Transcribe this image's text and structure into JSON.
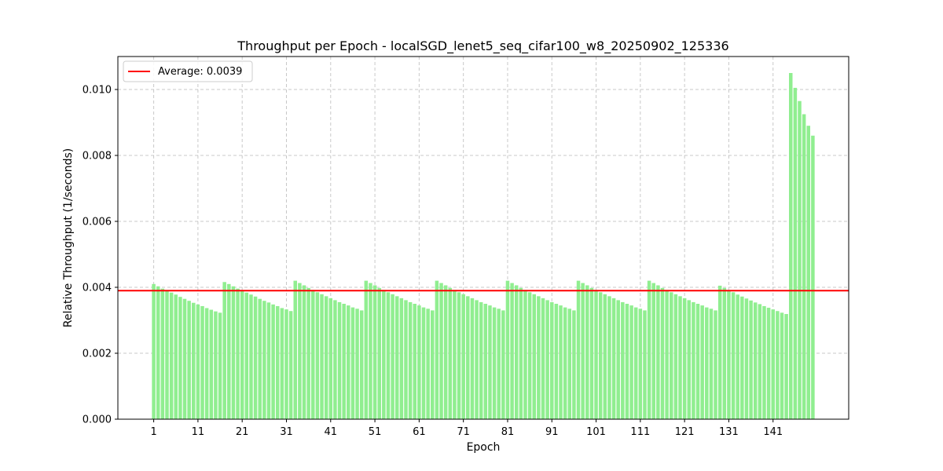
{
  "chart_data": {
    "type": "bar",
    "title": "Throughput per Epoch - localSGD_lenet5_seq_cifar100_w8_20250902_125336",
    "xlabel": "Epoch",
    "ylabel": "Relative Throughput (1/seconds)",
    "x_ticks": [
      1,
      11,
      21,
      31,
      41,
      51,
      61,
      71,
      81,
      91,
      101,
      111,
      121,
      131,
      141
    ],
    "y_ticks": [
      0.0,
      0.002,
      0.004,
      0.006,
      0.008,
      0.01
    ],
    "y_tick_labels": [
      "0.000",
      "0.002",
      "0.004",
      "0.006",
      "0.008",
      "0.010"
    ],
    "ylim": [
      0,
      0.011
    ],
    "xlim": [
      -7.1,
      158.1
    ],
    "grid": true,
    "legend_placement": "top-left",
    "bar_color": "#90ee90",
    "average": {
      "label": "Average: 0.0039",
      "value": 0.0039,
      "color": "#ff0000"
    },
    "x": [
      1,
      2,
      3,
      4,
      5,
      6,
      7,
      8,
      9,
      10,
      11,
      12,
      13,
      14,
      15,
      16,
      17,
      18,
      19,
      20,
      21,
      22,
      23,
      24,
      25,
      26,
      27,
      28,
      29,
      30,
      31,
      32,
      33,
      34,
      35,
      36,
      37,
      38,
      39,
      40,
      41,
      42,
      43,
      44,
      45,
      46,
      47,
      48,
      49,
      50,
      51,
      52,
      53,
      54,
      55,
      56,
      57,
      58,
      59,
      60,
      61,
      62,
      63,
      64,
      65,
      66,
      67,
      68,
      69,
      70,
      71,
      72,
      73,
      74,
      75,
      76,
      77,
      78,
      79,
      80,
      81,
      82,
      83,
      84,
      85,
      86,
      87,
      88,
      89,
      90,
      91,
      92,
      93,
      94,
      95,
      96,
      97,
      98,
      99,
      100,
      101,
      102,
      103,
      104,
      105,
      106,
      107,
      108,
      109,
      110,
      111,
      112,
      113,
      114,
      115,
      116,
      117,
      118,
      119,
      120,
      121,
      122,
      123,
      124,
      125,
      126,
      127,
      128,
      129,
      130,
      131,
      132,
      133,
      134,
      135,
      136,
      137,
      138,
      139,
      140,
      141,
      142,
      143,
      144,
      145,
      146,
      147,
      148,
      149,
      150
    ],
    "values": [
      0.0041,
      0.00403,
      0.00396,
      0.0039,
      0.00384,
      0.00378,
      0.00371,
      0.00365,
      0.00359,
      0.00353,
      0.00348,
      0.00343,
      0.00337,
      0.00332,
      0.00327,
      0.00323,
      0.00416,
      0.0041,
      0.00403,
      0.00396,
      0.0039,
      0.00384,
      0.00378,
      0.00372,
      0.00365,
      0.00359,
      0.00354,
      0.00348,
      0.00343,
      0.00337,
      0.00333,
      0.00328,
      0.0042,
      0.00413,
      0.00406,
      0.00398,
      0.00392,
      0.00385,
      0.00379,
      0.00373,
      0.00367,
      0.00361,
      0.00355,
      0.0035,
      0.00345,
      0.00339,
      0.00335,
      0.0033,
      0.0042,
      0.00413,
      0.00406,
      0.00398,
      0.00392,
      0.00385,
      0.00379,
      0.00373,
      0.00367,
      0.00361,
      0.00355,
      0.0035,
      0.00345,
      0.00339,
      0.00335,
      0.0033,
      0.0042,
      0.00413,
      0.00406,
      0.00398,
      0.00392,
      0.00385,
      0.00379,
      0.00373,
      0.00367,
      0.00361,
      0.00355,
      0.0035,
      0.00345,
      0.00339,
      0.00335,
      0.0033,
      0.0042,
      0.00413,
      0.00406,
      0.00398,
      0.00392,
      0.00385,
      0.00379,
      0.00373,
      0.00367,
      0.00361,
      0.00355,
      0.0035,
      0.00345,
      0.00339,
      0.00335,
      0.0033,
      0.0042,
      0.00413,
      0.00406,
      0.00398,
      0.00392,
      0.00385,
      0.00379,
      0.00373,
      0.00367,
      0.00361,
      0.00355,
      0.0035,
      0.00345,
      0.00339,
      0.00335,
      0.0033,
      0.0042,
      0.00413,
      0.00406,
      0.00398,
      0.00392,
      0.00385,
      0.00379,
      0.00373,
      0.00367,
      0.00361,
      0.00355,
      0.0035,
      0.00345,
      0.00339,
      0.00335,
      0.0033,
      0.00405,
      0.00398,
      0.00391,
      0.00385,
      0.00378,
      0.00372,
      0.00366,
      0.0036,
      0.00354,
      0.00349,
      0.00343,
      0.00338,
      0.00333,
      0.00328,
      0.00323,
      0.00319,
      0.0105,
      0.01005,
      0.00965,
      0.00925,
      0.0089,
      0.0086
    ]
  }
}
